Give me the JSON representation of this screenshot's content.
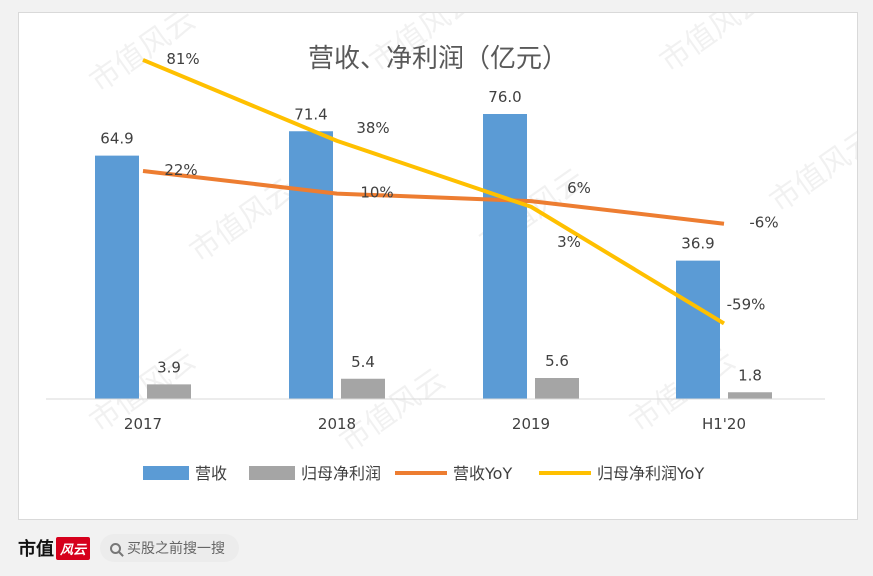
{
  "chart_data": {
    "type": "bar+line",
    "title": "营收、净利润（亿元）",
    "categories": [
      "2017",
      "2018",
      "2019",
      "H1'20"
    ],
    "bar_series": [
      {
        "name": "营收",
        "values": [
          64.9,
          71.4,
          76.0,
          36.9
        ],
        "value_labels": [
          "64.9",
          "71.4",
          "76.0",
          "36.9"
        ],
        "color": "#5b9bd5"
      },
      {
        "name": "归母净利润",
        "values": [
          3.9,
          5.4,
          5.6,
          1.8
        ],
        "value_labels": [
          "3.9",
          "5.4",
          "5.6",
          "1.8"
        ],
        "color": "#a5a5a5"
      }
    ],
    "line_series": [
      {
        "name": "营收YoY",
        "values": [
          22,
          10,
          6,
          -6
        ],
        "value_labels": [
          "22%",
          "10%",
          "6%",
          "-6%"
        ],
        "color": "#ed7d31"
      },
      {
        "name": "归母净利润YoY",
        "values": [
          81,
          38,
          3,
          -59
        ],
        "value_labels": [
          "81%",
          "38%",
          "3%",
          "-59%"
        ],
        "color": "#ffc000"
      }
    ],
    "bar_axis_range": [
      0,
      80
    ],
    "line_axis_range": [
      -80,
      90
    ],
    "gridlines": false,
    "legend_position": "bottom"
  },
  "watermark": "市值风云",
  "footer": {
    "brand": "市值",
    "brand_logo": "风云",
    "search_text": "买股之前搜一搜"
  }
}
